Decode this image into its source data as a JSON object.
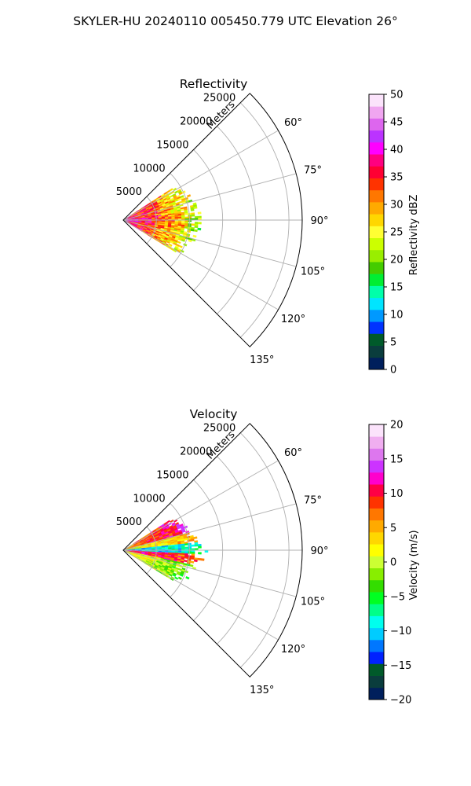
{
  "suptitle": "SKYLER-HU  20240110  005450.779 UTC Elevation 26°",
  "colors": {
    "grid": "#b0b0b0",
    "frame": "#000000",
    "background": "#ffffff"
  },
  "chart_data": [
    {
      "type": "heatmap",
      "projection": "polar-sector",
      "title": "Reflectivity",
      "radial_label": "Meters",
      "radial_ticks": [
        "5000",
        "10000",
        "15000",
        "20000",
        "25000"
      ],
      "radial_tick_values": [
        5000,
        10000,
        15000,
        20000,
        25000
      ],
      "radial_range": [
        0,
        27000
      ],
      "angle_ticks": [
        "60°",
        "75°",
        "90°",
        "105°",
        "120°",
        "135°"
      ],
      "angle_tick_values": [
        60,
        75,
        90,
        105,
        120,
        135
      ],
      "angle_range": [
        45,
        135
      ],
      "grid": true,
      "data_extent": {
        "range_max_m": 12500,
        "angle_min": 57,
        "angle_max": 121
      },
      "colorbar": {
        "label": "Reflectivity dBZ",
        "ticks": [
          "0",
          "5",
          "10",
          "15",
          "20",
          "25",
          "30",
          "35",
          "40",
          "45",
          "50"
        ],
        "range": [
          0,
          50
        ],
        "colors": [
          "#001f5c",
          "#0a3d3d",
          "#005a2a",
          "#0033ff",
          "#0099ff",
          "#00e5ff",
          "#00ffaa",
          "#00ee33",
          "#44cc00",
          "#99ee00",
          "#ccff00",
          "#ffff33",
          "#ffd700",
          "#ffaa00",
          "#ff7700",
          "#ff3300",
          "#ff0033",
          "#ff0080",
          "#ff00ff",
          "#bb33ff",
          "#dd66ee",
          "#f0a6f0",
          "#fbe3fb"
        ]
      }
    },
    {
      "type": "heatmap",
      "projection": "polar-sector",
      "title": "Velocity",
      "radial_label": "Meters",
      "radial_ticks": [
        "5000",
        "10000",
        "15000",
        "20000",
        "25000"
      ],
      "radial_tick_values": [
        5000,
        10000,
        15000,
        20000,
        25000
      ],
      "radial_range": [
        0,
        27000
      ],
      "angle_ticks": [
        "60°",
        "75°",
        "90°",
        "105°",
        "120°",
        "135°"
      ],
      "angle_tick_values": [
        60,
        75,
        90,
        105,
        120,
        135
      ],
      "angle_range": [
        45,
        135
      ],
      "grid": true,
      "data_extent": {
        "range_max_m": 12500,
        "angle_min": 57,
        "angle_max": 121
      },
      "colorbar": {
        "label": "Velocity (m/s)",
        "ticks": [
          "−20",
          "−15",
          "−10",
          "−5",
          "0",
          "5",
          "10",
          "15",
          "20"
        ],
        "range": [
          -20,
          20
        ],
        "colors": [
          "#001f5c",
          "#0a3d3d",
          "#005a2a",
          "#0022ff",
          "#0077ff",
          "#00ccff",
          "#00ffee",
          "#00ff88",
          "#00ff22",
          "#33dd00",
          "#88ee00",
          "#ccff33",
          "#ffff00",
          "#ffd700",
          "#ffaa00",
          "#ff7700",
          "#ff3300",
          "#ff0044",
          "#ff00cc",
          "#cc33ff",
          "#dd77ee",
          "#f0aef0",
          "#fbe3fb"
        ]
      }
    }
  ]
}
